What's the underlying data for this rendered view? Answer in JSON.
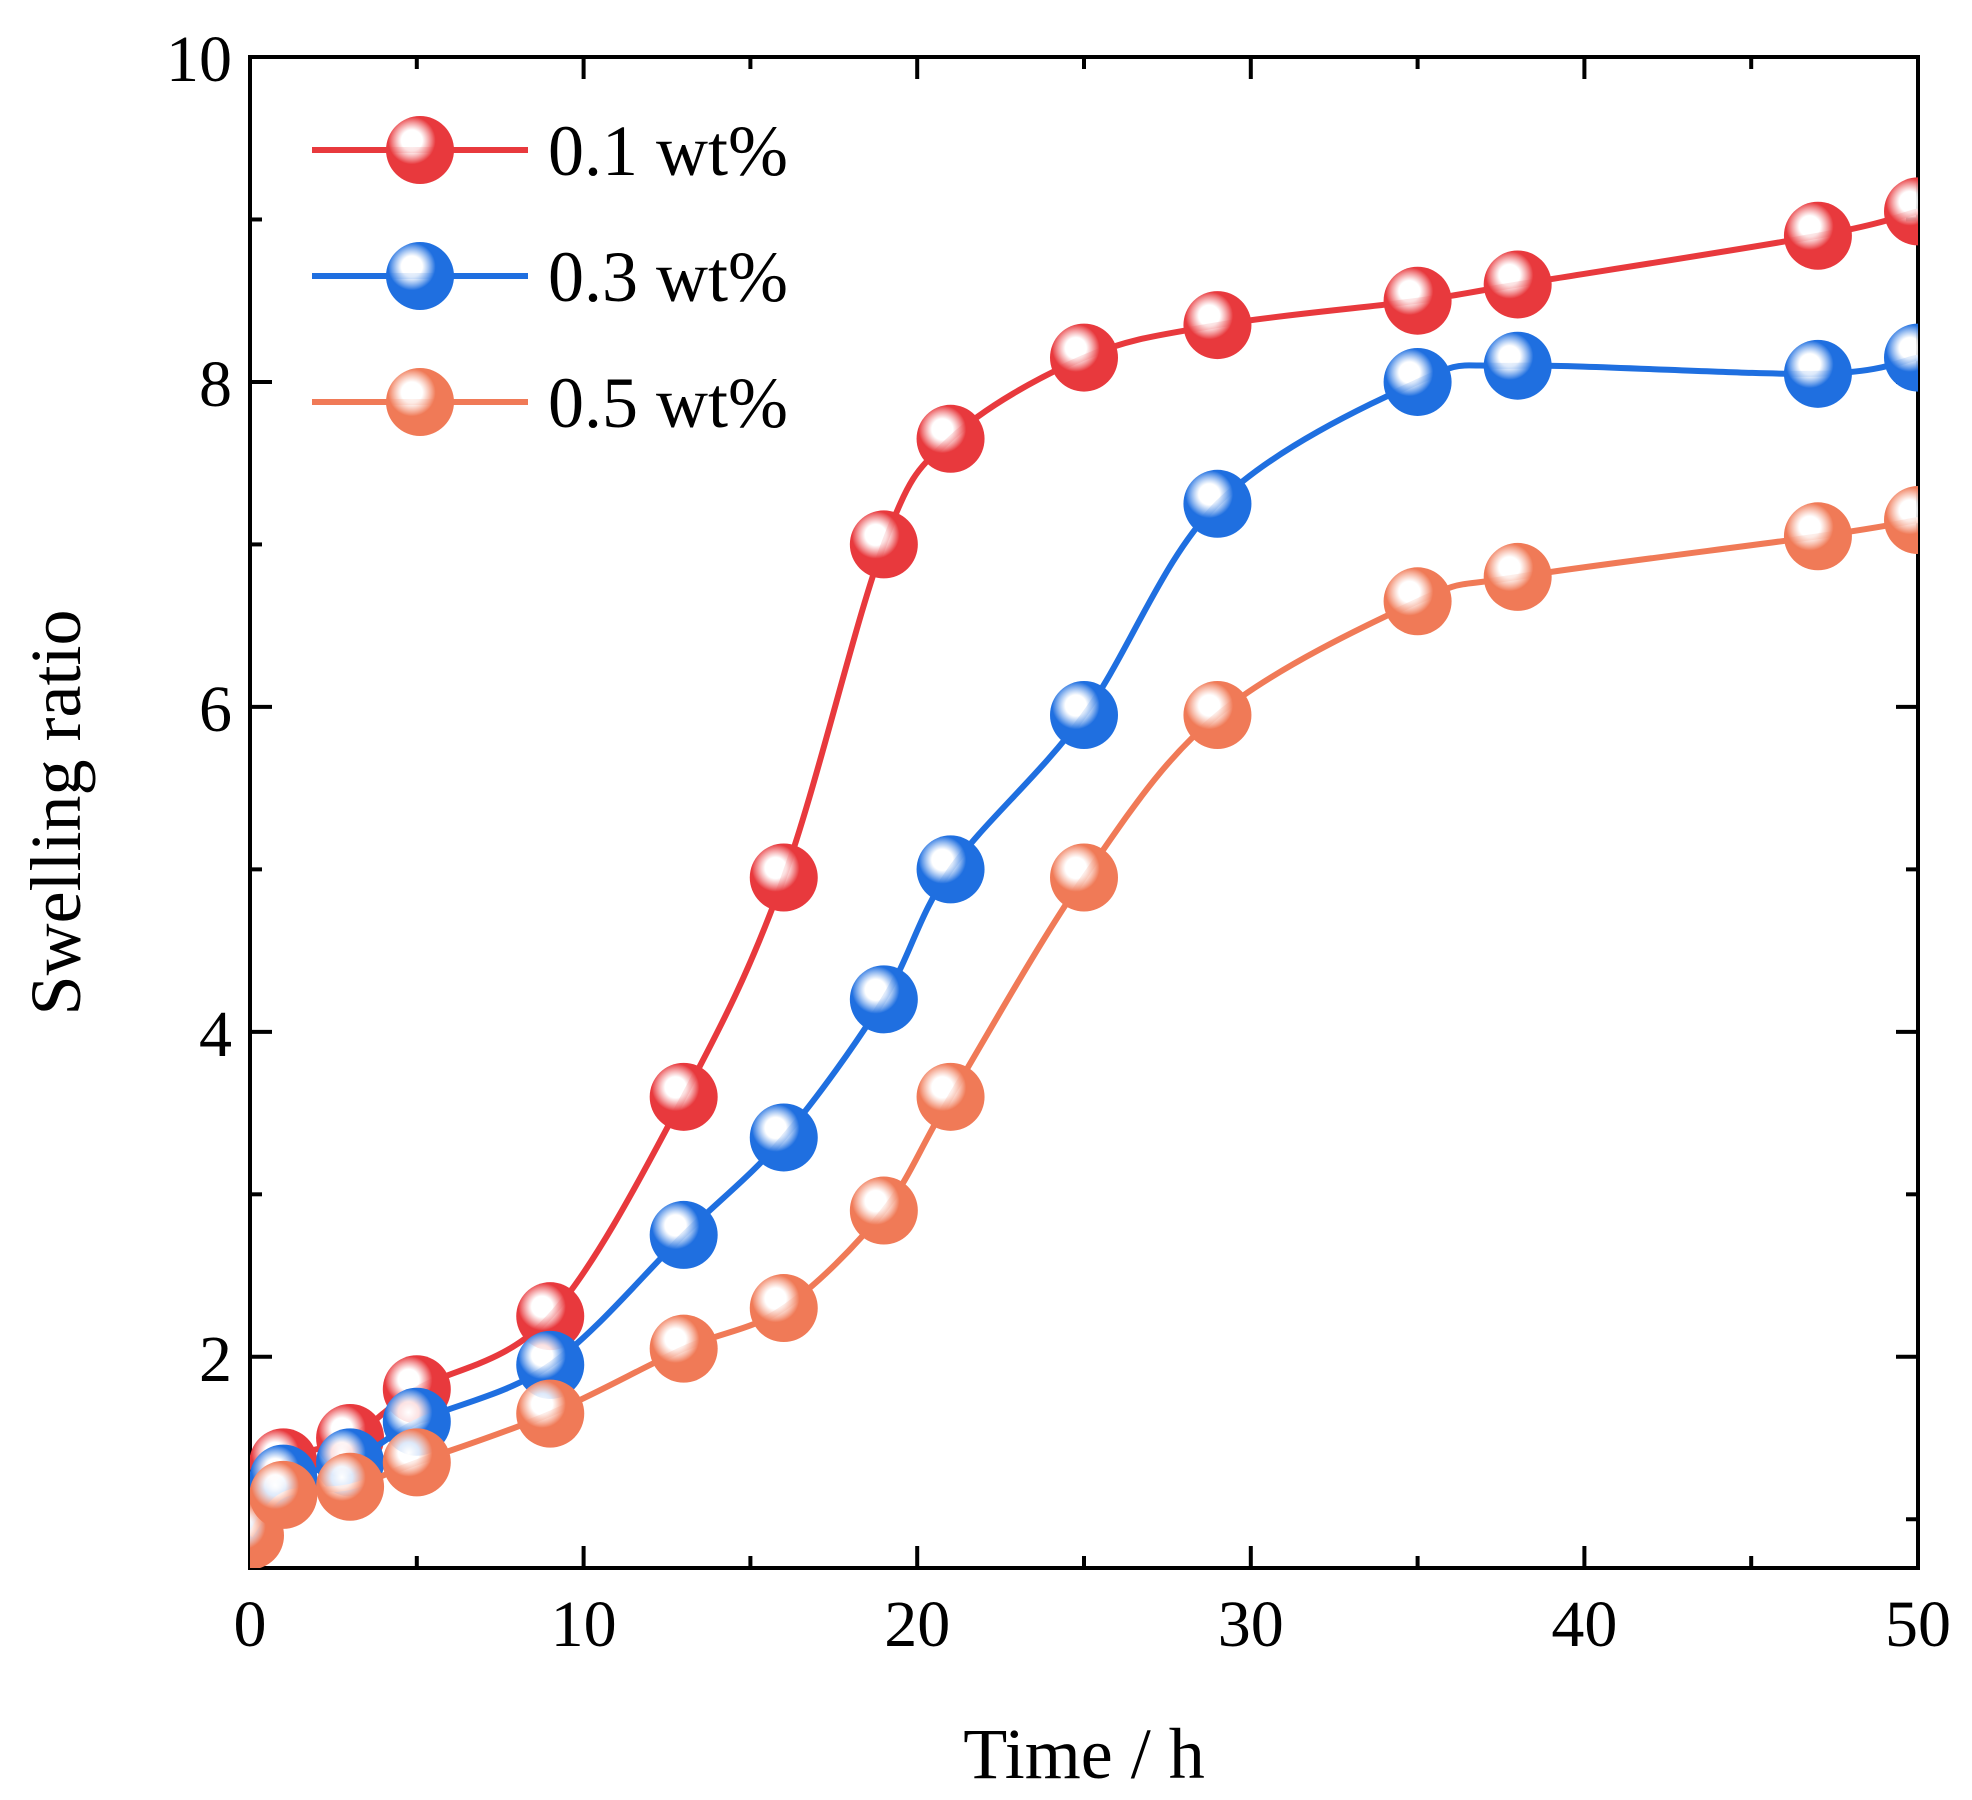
{
  "chart_data": {
    "type": "line",
    "title": "",
    "xlabel": "Time / h",
    "ylabel": "Swelling ratio",
    "xlim": [
      0,
      50
    ],
    "ylim": [
      0.7,
      10
    ],
    "xticks": [
      0,
      10,
      20,
      30,
      40,
      50
    ],
    "yticks": [
      2,
      4,
      6,
      8,
      10
    ],
    "x_tick_labels": [
      "0",
      "10",
      "20",
      "30",
      "40",
      "50"
    ],
    "y_tick_labels": [
      "2",
      "4",
      "6",
      "8",
      "10"
    ],
    "grid": false,
    "legend_position": "top-left",
    "series": [
      {
        "name": "0.1 wt%",
        "color": "#e8393d",
        "x": [
          0,
          1,
          3,
          5,
          9,
          13,
          16,
          19,
          21,
          25,
          29,
          35,
          38,
          47,
          50
        ],
        "y": [
          1.0,
          1.35,
          1.5,
          1.8,
          2.25,
          3.6,
          4.95,
          7.0,
          7.65,
          8.15,
          8.35,
          8.5,
          8.6,
          8.9,
          9.05
        ]
      },
      {
        "name": "0.3 wt%",
        "color": "#1f6fe0",
        "x": [
          0,
          1,
          3,
          5,
          9,
          13,
          16,
          19,
          21,
          25,
          29,
          35,
          38,
          47,
          50
        ],
        "y": [
          1.0,
          1.25,
          1.35,
          1.6,
          1.95,
          2.75,
          3.35,
          4.2,
          5.0,
          5.95,
          7.25,
          8.0,
          8.1,
          8.05,
          8.15
        ]
      },
      {
        "name": "0.5 wt%",
        "color": "#f07a57",
        "x": [
          0,
          1,
          3,
          5,
          9,
          13,
          16,
          19,
          21,
          25,
          29,
          35,
          38,
          47,
          50
        ],
        "y": [
          0.9,
          1.15,
          1.2,
          1.35,
          1.65,
          2.05,
          2.3,
          2.9,
          3.6,
          4.95,
          5.95,
          6.65,
          6.8,
          7.05,
          7.15
        ]
      }
    ]
  }
}
